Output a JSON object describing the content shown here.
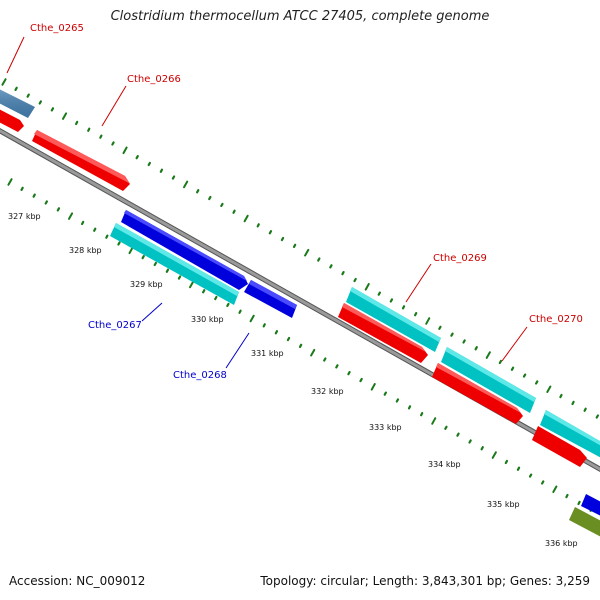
{
  "title": "Clostridium thermocellum ATCC 27405, complete genome",
  "accession": "Accession: NC_009012",
  "info": "Topology: circular; Length: 3,843,301 bp; Genes: 3,259",
  "colors": {
    "forward_cds": "#ff0000",
    "reverse_cds": "#0000ff",
    "gene_cyan": "#00cccc",
    "gene_steelblue": "#4682b4",
    "gene_olive": "#6b8e23",
    "backbone": "#808080",
    "tick": "#1a7a1a",
    "label_forward": "#cc0000",
    "label_reverse": "#0000cc"
  },
  "ticks": [
    "327 kbp",
    "328 kbp",
    "329 kbp",
    "330 kbp",
    "331 kbp",
    "332 kbp",
    "333 kbp",
    "334 kbp",
    "335 kbp",
    "336 kbp"
  ],
  "gene_labels": [
    {
      "name": "Cthe_0265",
      "strand": "forward"
    },
    {
      "name": "Cthe_0266",
      "strand": "forward"
    },
    {
      "name": "Cthe_0267",
      "strand": "reverse"
    },
    {
      "name": "Cthe_0268",
      "strand": "reverse"
    },
    {
      "name": "Cthe_0269",
      "strand": "forward"
    },
    {
      "name": "Cthe_0270",
      "strand": "forward"
    }
  ]
}
